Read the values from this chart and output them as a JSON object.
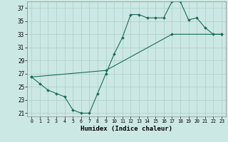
{
  "xlabel": "Humidex (Indice chaleur)",
  "background_color": "#cce8e4",
  "grid_color": "#aaccca",
  "line_color": "#1a6b5a",
  "xlim": [
    -0.5,
    23.5
  ],
  "ylim": [
    20.5,
    38.0
  ],
  "xticks": [
    0,
    1,
    2,
    3,
    4,
    5,
    6,
    7,
    8,
    9,
    10,
    11,
    12,
    13,
    14,
    15,
    16,
    17,
    18,
    19,
    20,
    21,
    22,
    23
  ],
  "yticks": [
    21,
    23,
    25,
    27,
    29,
    31,
    33,
    35,
    37
  ],
  "curve1_x": [
    0,
    1,
    2,
    3,
    4,
    5,
    6,
    7,
    8,
    9,
    10,
    11,
    12,
    13,
    14,
    15,
    16,
    17,
    18,
    19,
    20,
    21,
    22,
    23
  ],
  "curve1_y": [
    26.5,
    25.5,
    24.5,
    24.0,
    23.5,
    21.5,
    21.0,
    21.0,
    24.0,
    27.0,
    30.0,
    32.5,
    36.0,
    36.0,
    35.5,
    35.5,
    35.5,
    38.0,
    38.0,
    35.2,
    35.5,
    34.0,
    33.0,
    33.0
  ],
  "curve2_x": [
    0,
    9,
    17,
    23
  ],
  "curve2_y": [
    26.5,
    27.5,
    33.0,
    33.0
  ]
}
